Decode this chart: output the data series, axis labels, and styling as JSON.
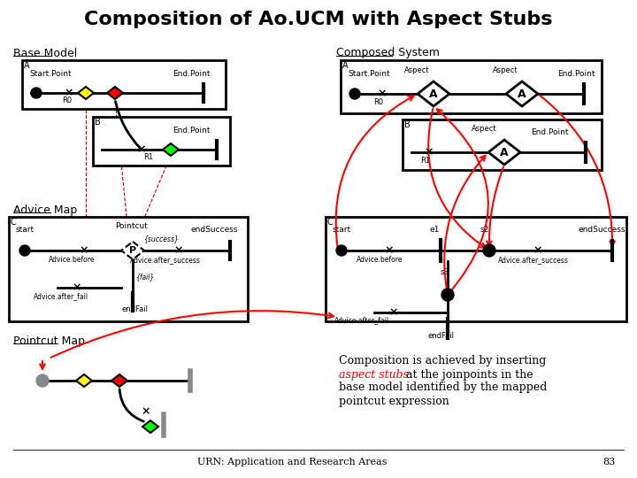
{
  "title": "Composition of Ao.UCM with Aspect Stubs",
  "bg_color": "#ffffff",
  "title_fontsize": 16,
  "footer_text": "URN: Application and Research Areas",
  "footer_page": "83"
}
